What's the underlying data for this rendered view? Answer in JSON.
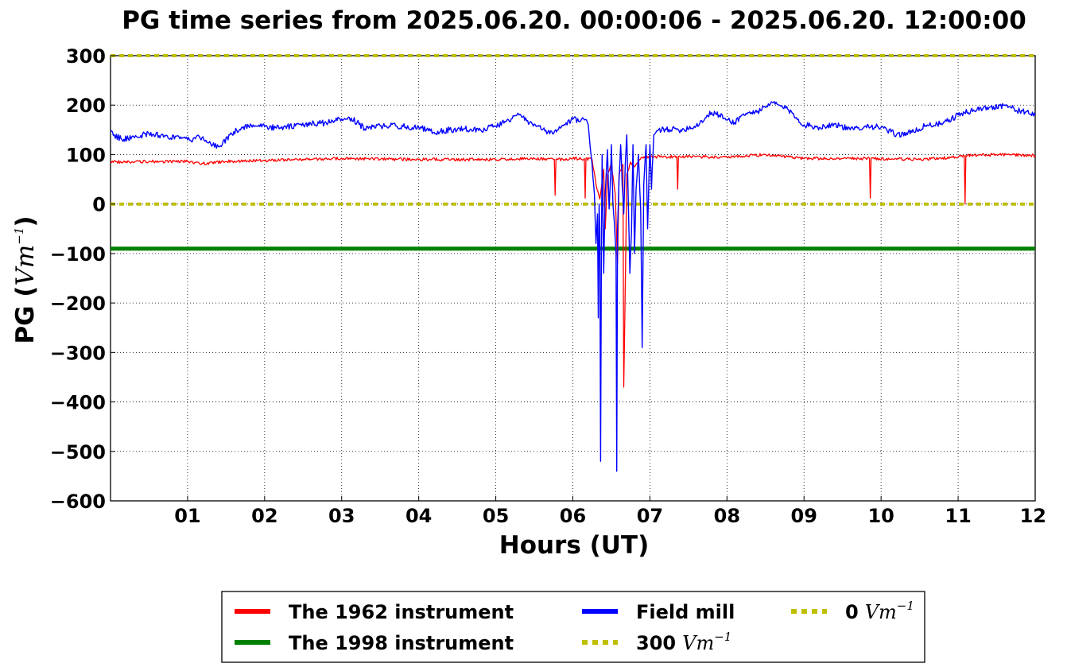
{
  "chart_data": {
    "type": "line",
    "title": "PG time series from 2025.06.20. 00:00:06 - 2025.06.20. 12:00:00",
    "xlabel": "Hours (UT)",
    "ylabel": {
      "prefix": "PG (",
      "unit": "Vm",
      "exponent": "−1",
      "suffix": ")"
    },
    "xlim": [
      0,
      12
    ],
    "ylim": [
      -600,
      300
    ],
    "xticks": [
      {
        "value": 1,
        "label": "01"
      },
      {
        "value": 2,
        "label": "02"
      },
      {
        "value": 3,
        "label": "03"
      },
      {
        "value": 4,
        "label": "04"
      },
      {
        "value": 5,
        "label": "05"
      },
      {
        "value": 6,
        "label": "06"
      },
      {
        "value": 7,
        "label": "07"
      },
      {
        "value": 8,
        "label": "08"
      },
      {
        "value": 9,
        "label": "09"
      },
      {
        "value": 10,
        "label": "10"
      },
      {
        "value": 11,
        "label": "11"
      },
      {
        "value": 12,
        "label": "12"
      }
    ],
    "yticks": [
      {
        "value": 300,
        "label": "300"
      },
      {
        "value": 200,
        "label": "200"
      },
      {
        "value": 100,
        "label": "100"
      },
      {
        "value": 0,
        "label": "0"
      },
      {
        "value": -100,
        "label": "−100"
      },
      {
        "value": -200,
        "label": "−200"
      },
      {
        "value": -300,
        "label": "−300"
      },
      {
        "value": -400,
        "label": "−400"
      },
      {
        "value": -500,
        "label": "−500"
      },
      {
        "value": -600,
        "label": "−600"
      }
    ],
    "grid": true,
    "legend_position": "bottom-center",
    "series": [
      {
        "name": "Field mill",
        "color": "#0000ff",
        "style": "solid",
        "points": [
          [
            0,
            148
          ],
          [
            0.05,
            140
          ],
          [
            0.15,
            130
          ],
          [
            0.3,
            136
          ],
          [
            0.5,
            142
          ],
          [
            0.7,
            138
          ],
          [
            0.9,
            132
          ],
          [
            1.0,
            130
          ],
          [
            1.1,
            132
          ],
          [
            1.2,
            136
          ],
          [
            1.3,
            122
          ],
          [
            1.4,
            116
          ],
          [
            1.45,
            120
          ],
          [
            1.55,
            140
          ],
          [
            1.7,
            155
          ],
          [
            1.85,
            160
          ],
          [
            2.0,
            156
          ],
          [
            2.2,
            154
          ],
          [
            2.4,
            158
          ],
          [
            2.6,
            162
          ],
          [
            2.8,
            164
          ],
          [
            3.0,
            172
          ],
          [
            3.1,
            175
          ],
          [
            3.2,
            165
          ],
          [
            3.3,
            152
          ],
          [
            3.5,
            158
          ],
          [
            3.7,
            158
          ],
          [
            4.0,
            155
          ],
          [
            4.1,
            150
          ],
          [
            4.2,
            145
          ],
          [
            4.4,
            150
          ],
          [
            4.6,
            152
          ],
          [
            4.8,
            150
          ],
          [
            5.0,
            158
          ],
          [
            5.2,
            172
          ],
          [
            5.3,
            180
          ],
          [
            5.4,
            168
          ],
          [
            5.5,
            162
          ],
          [
            5.6,
            150
          ],
          [
            5.7,
            142
          ],
          [
            5.8,
            150
          ],
          [
            5.9,
            160
          ],
          [
            6.0,
            172
          ],
          [
            6.1,
            168
          ],
          [
            6.15,
            170
          ],
          [
            6.2,
            160
          ],
          [
            6.25,
            80
          ],
          [
            6.28,
            20
          ],
          [
            6.3,
            -80
          ],
          [
            6.32,
            -20
          ],
          [
            6.33,
            -230
          ],
          [
            6.34,
            0
          ],
          [
            6.35,
            -50
          ],
          [
            6.36,
            -520
          ],
          [
            6.37,
            -100
          ],
          [
            6.38,
            100
          ],
          [
            6.4,
            -140
          ],
          [
            6.42,
            20
          ],
          [
            6.45,
            110
          ],
          [
            6.47,
            -10
          ],
          [
            6.49,
            60
          ],
          [
            6.5,
            120
          ],
          [
            6.52,
            0
          ],
          [
            6.54,
            -40
          ],
          [
            6.56,
            -100
          ],
          [
            6.57,
            -540
          ],
          [
            6.58,
            -50
          ],
          [
            6.6,
            50
          ],
          [
            6.62,
            120
          ],
          [
            6.64,
            40
          ],
          [
            6.66,
            -20
          ],
          [
            6.68,
            80
          ],
          [
            6.7,
            140
          ],
          [
            6.72,
            0
          ],
          [
            6.74,
            -140
          ],
          [
            6.76,
            -60
          ],
          [
            6.78,
            120
          ],
          [
            6.8,
            -100
          ],
          [
            6.82,
            30
          ],
          [
            6.85,
            100
          ],
          [
            6.88,
            -10
          ],
          [
            6.9,
            -290
          ],
          [
            6.92,
            40
          ],
          [
            6.95,
            120
          ],
          [
            6.97,
            -50
          ],
          [
            7.0,
            120
          ],
          [
            7.02,
            30
          ],
          [
            7.05,
            140
          ],
          [
            7.1,
            148
          ],
          [
            7.2,
            152
          ],
          [
            7.4,
            150
          ],
          [
            7.6,
            158
          ],
          [
            7.8,
            185
          ],
          [
            7.9,
            180
          ],
          [
            8.0,
            170
          ],
          [
            8.1,
            165
          ],
          [
            8.2,
            180
          ],
          [
            8.4,
            188
          ],
          [
            8.5,
            195
          ],
          [
            8.6,
            205
          ],
          [
            8.7,
            198
          ],
          [
            8.8,
            190
          ],
          [
            8.9,
            175
          ],
          [
            9.0,
            160
          ],
          [
            9.2,
            155
          ],
          [
            9.4,
            162
          ],
          [
            9.6,
            150
          ],
          [
            9.8,
            158
          ],
          [
            10.0,
            155
          ],
          [
            10.2,
            140
          ],
          [
            10.4,
            145
          ],
          [
            10.6,
            160
          ],
          [
            10.8,
            162
          ],
          [
            11.0,
            180
          ],
          [
            11.2,
            190
          ],
          [
            11.4,
            195
          ],
          [
            11.6,
            200
          ],
          [
            11.8,
            188
          ],
          [
            12.0,
            180
          ]
        ],
        "noise": 6
      },
      {
        "name": "The 1962 instrument",
        "color": "#ff0000",
        "style": "solid",
        "points": [
          [
            0,
            85
          ],
          [
            0.5,
            86
          ],
          [
            1.0,
            86
          ],
          [
            1.2,
            82
          ],
          [
            1.5,
            86
          ],
          [
            2.0,
            88
          ],
          [
            3.0,
            92
          ],
          [
            4.0,
            90
          ],
          [
            5.0,
            90
          ],
          [
            5.5,
            92
          ],
          [
            5.76,
            90
          ],
          [
            5.77,
            18
          ],
          [
            5.78,
            90
          ],
          [
            6.0,
            92
          ],
          [
            6.15,
            92
          ],
          [
            6.16,
            12
          ],
          [
            6.17,
            92
          ],
          [
            6.25,
            90
          ],
          [
            6.3,
            40
          ],
          [
            6.35,
            10
          ],
          [
            6.4,
            70
          ],
          [
            6.42,
            -50
          ],
          [
            6.45,
            60
          ],
          [
            6.5,
            80
          ],
          [
            6.55,
            20
          ],
          [
            6.58,
            -120
          ],
          [
            6.6,
            60
          ],
          [
            6.65,
            80
          ],
          [
            6.66,
            -370
          ],
          [
            6.67,
            -280
          ],
          [
            6.7,
            60
          ],
          [
            6.75,
            85
          ],
          [
            6.8,
            75
          ],
          [
            6.9,
            95
          ],
          [
            7.0,
            95
          ],
          [
            7.3,
            96
          ],
          [
            7.35,
            96
          ],
          [
            7.36,
            30
          ],
          [
            7.37,
            96
          ],
          [
            8.0,
            95
          ],
          [
            8.5,
            100
          ],
          [
            9.0,
            92
          ],
          [
            9.5,
            92
          ],
          [
            9.85,
            92
          ],
          [
            9.86,
            12
          ],
          [
            9.87,
            92
          ],
          [
            10.5,
            90
          ],
          [
            11.0,
            95
          ],
          [
            11.08,
            98
          ],
          [
            11.09,
            0
          ],
          [
            11.1,
            98
          ],
          [
            11.5,
            100
          ],
          [
            12.0,
            98
          ]
        ],
        "noise": 3
      },
      {
        "name": "The 1998 instrument",
        "color": "#008000",
        "style": "solid",
        "points": [
          [
            0,
            -90
          ],
          [
            12,
            -90
          ]
        ]
      },
      {
        "name": "300",
        "unit": "Vm",
        "exponent": "−1",
        "color": "#bfbf00",
        "style": "dotted",
        "points": [
          [
            0,
            300
          ],
          [
            12,
            300
          ]
        ]
      },
      {
        "name": "0",
        "unit": "Vm",
        "exponent": "−1",
        "color": "#bfbf00",
        "style": "dotted",
        "points": [
          [
            0,
            0
          ],
          [
            12,
            0
          ]
        ]
      }
    ]
  }
}
